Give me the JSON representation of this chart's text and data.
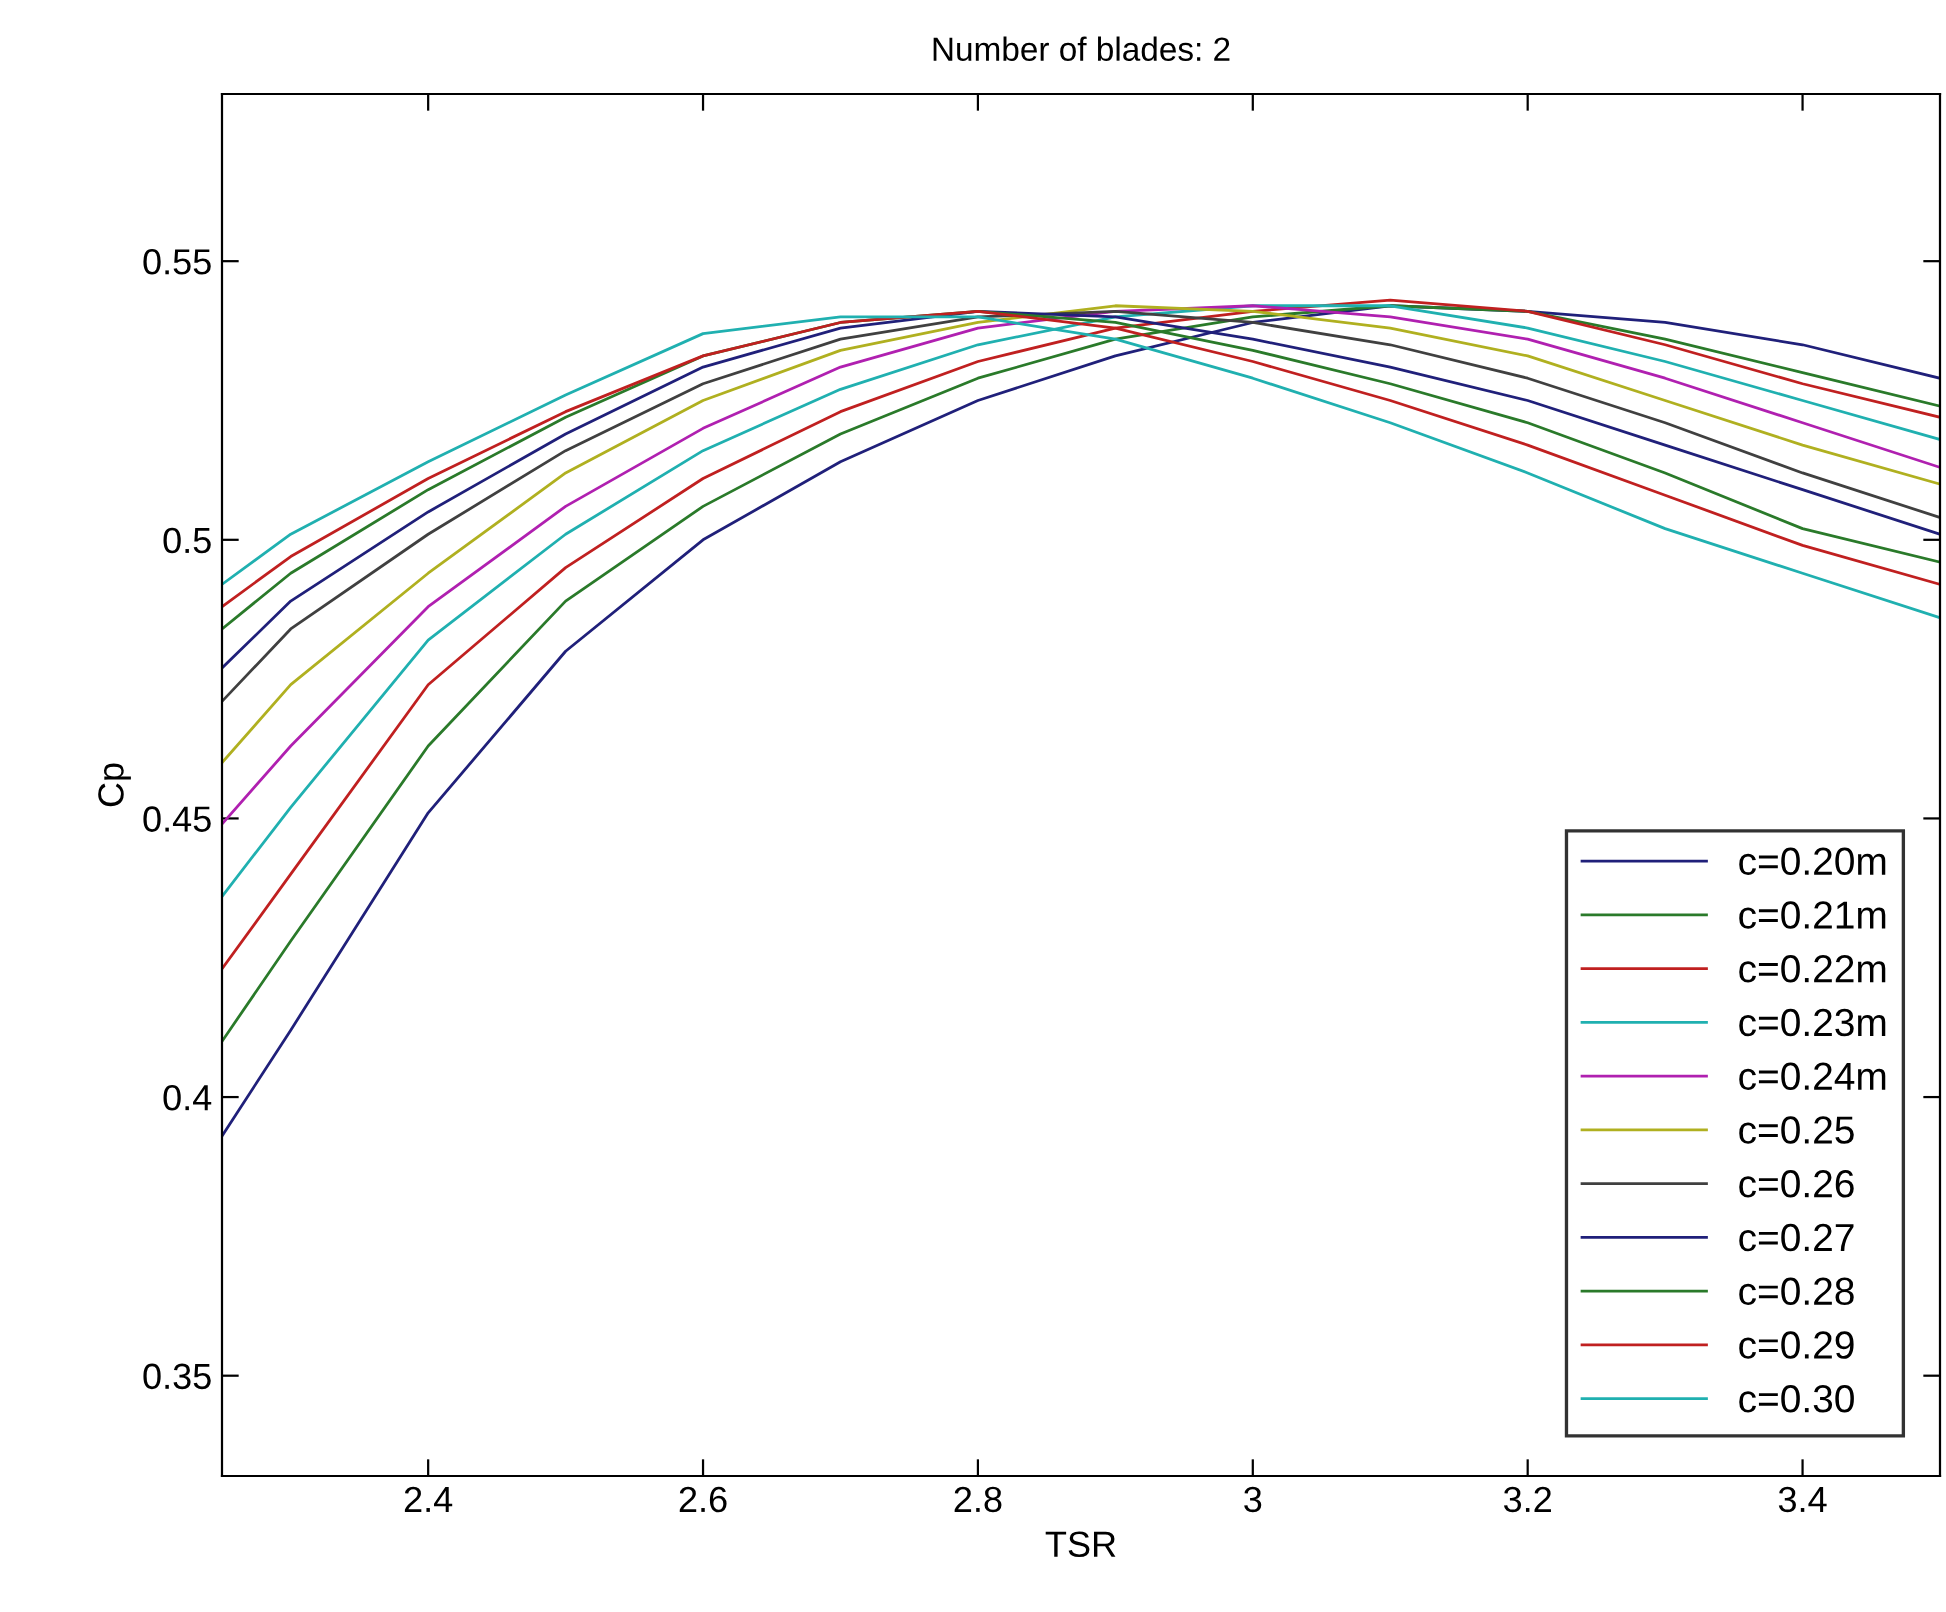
{
  "chart_data": {
    "type": "line",
    "title": "Number of blades: 2",
    "xlabel": "TSR",
    "ylabel": "Cp",
    "x": [
      2.25,
      2.3,
      2.4,
      2.5,
      2.6,
      2.7,
      2.8,
      2.9,
      3.0,
      3.1,
      3.2,
      3.3,
      3.4,
      3.5
    ],
    "xlim": [
      2.25,
      3.5
    ],
    "xticks": [
      2.4,
      2.6,
      2.8,
      3,
      3.2,
      3.4
    ],
    "ylim": [
      0.332,
      0.58
    ],
    "yticks": [
      0.35,
      0.4,
      0.45,
      0.5,
      0.55
    ],
    "grid": false,
    "legend": "lower right",
    "marker": "none",
    "line_style": "solid",
    "series": [
      {
        "name": "c=0.20m",
        "color": "#20207a",
        "values": [
          0.393,
          0.412,
          0.451,
          0.48,
          0.5,
          0.514,
          0.525,
          0.533,
          0.539,
          0.542,
          0.541,
          0.539,
          0.535,
          0.529
        ]
      },
      {
        "name": "c=0.21m",
        "color": "#2a7a2a",
        "values": [
          0.41,
          0.428,
          0.463,
          0.489,
          0.506,
          0.519,
          0.529,
          0.536,
          0.54,
          0.542,
          0.541,
          0.536,
          0.53,
          0.524
        ]
      },
      {
        "name": "c=0.22m",
        "color": "#c02020",
        "values": [
          0.423,
          0.44,
          0.474,
          0.495,
          0.511,
          0.523,
          0.532,
          0.538,
          0.541,
          0.543,
          0.541,
          0.535,
          0.528,
          0.522
        ]
      },
      {
        "name": "c=0.23m",
        "color": "#20b0b0",
        "values": [
          0.436,
          0.452,
          0.482,
          0.501,
          0.516,
          0.527,
          0.535,
          0.54,
          0.542,
          0.542,
          0.538,
          0.532,
          0.525,
          0.518
        ]
      },
      {
        "name": "c=0.24m",
        "color": "#b020b0",
        "values": [
          0.449,
          0.463,
          0.488,
          0.506,
          0.52,
          0.531,
          0.538,
          0.541,
          0.542,
          0.54,
          0.536,
          0.529,
          0.521,
          0.513
        ]
      },
      {
        "name": "c=0.25",
        "color": "#b0b020",
        "values": [
          0.46,
          0.474,
          0.494,
          0.512,
          0.525,
          0.534,
          0.539,
          0.542,
          0.541,
          0.538,
          0.533,
          0.525,
          0.517,
          0.51
        ]
      },
      {
        "name": "c=0.26",
        "color": "#404040",
        "values": [
          0.471,
          0.484,
          0.501,
          0.516,
          0.528,
          0.536,
          0.54,
          0.541,
          0.539,
          0.535,
          0.529,
          0.521,
          0.512,
          0.504
        ]
      },
      {
        "name": "c=0.27",
        "color": "#20207a",
        "values": [
          0.477,
          0.489,
          0.505,
          0.519,
          0.531,
          0.538,
          0.541,
          0.54,
          0.536,
          0.531,
          0.525,
          0.517,
          0.509,
          0.501
        ]
      },
      {
        "name": "c=0.28",
        "color": "#2a7a2a",
        "values": [
          0.484,
          0.494,
          0.509,
          0.522,
          0.533,
          0.539,
          0.541,
          0.539,
          0.534,
          0.528,
          0.521,
          0.512,
          0.502,
          0.496
        ]
      },
      {
        "name": "c=0.29",
        "color": "#c02020",
        "values": [
          0.488,
          0.497,
          0.511,
          0.523,
          0.533,
          0.539,
          0.541,
          0.538,
          0.532,
          0.525,
          0.517,
          0.508,
          0.499,
          0.492
        ]
      },
      {
        "name": "c=0.30",
        "color": "#20b0b0",
        "values": [
          0.492,
          0.501,
          0.514,
          0.526,
          0.537,
          0.54,
          0.54,
          0.536,
          0.529,
          0.521,
          0.512,
          0.502,
          0.494,
          0.486
        ]
      }
    ]
  }
}
